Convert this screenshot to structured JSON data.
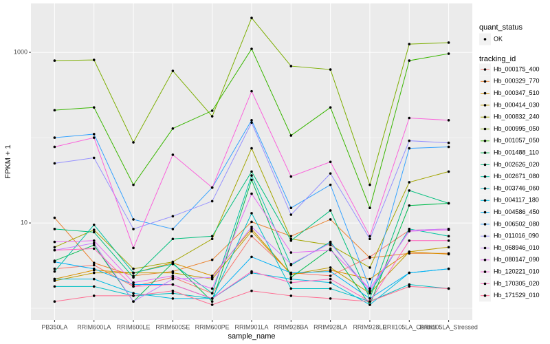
{
  "chart_data": {
    "type": "line",
    "xlabel": "sample_name",
    "ylabel": "FPKM + 1",
    "log_scale": true,
    "grid": true,
    "categories": [
      "PB350LA",
      "RRIM600LA",
      "RRIM600LE",
      "RRIM600SE",
      "RRIM600PE",
      "RRIM901LA",
      "RRIM928BA",
      "RRIM928LA",
      "RRIM928LE",
      "RRII105LA_Control",
      "RRII105LA_Stressed"
    ],
    "ylim": [
      0.73,
      3744
    ],
    "yticks": [
      10,
      1000
    ],
    "point_color": "#000000",
    "status_legend": {
      "title": "quant_status",
      "labels": [
        "OK"
      ]
    },
    "legend_title": "tracking_id",
    "legend_position": "right",
    "series": [
      {
        "name": "Hb_000175_400",
        "color": "#F8766D",
        "values": [
          2.9,
          3.2,
          1.8,
          2.3,
          1.5,
          7.0,
          2.6,
          2.4,
          4.0,
          8.2,
          8.5
        ]
      },
      {
        "name": "Hb_000329_770",
        "color": "#EA8331",
        "values": [
          11.5,
          3.4,
          2.4,
          2.7,
          3.7,
          10.3,
          7.0,
          11,
          3.9,
          4.4,
          4.4
        ]
      },
      {
        "name": "Hb_000347_510",
        "color": "#D89000",
        "values": [
          2.2,
          2.8,
          2.6,
          3.4,
          2.4,
          8.5,
          2.5,
          2.8,
          2.2,
          4.6,
          4.3
        ]
      },
      {
        "name": "Hb_000414_030",
        "color": "#C09B00",
        "values": [
          2.1,
          2.6,
          2.6,
          2.6,
          2.2,
          8.0,
          2.5,
          3.0,
          1.5,
          4.6,
          5.2
        ]
      },
      {
        "name": "Hb_000832_240",
        "color": "#A3A500",
        "values": [
          5.2,
          8.3,
          2.9,
          3.5,
          6.5,
          75,
          6.5,
          5.5,
          3.0,
          30,
          40
        ]
      },
      {
        "name": "Hb_000995_050",
        "color": "#7CAE00",
        "values": [
          800,
          815,
          88,
          606,
          178,
          2530,
          690,
          629,
          28,
          1250,
          1300
        ]
      },
      {
        "name": "Hb_001057_050",
        "color": "#39B600",
        "values": [
          210,
          226,
          28,
          128,
          207,
          1098,
          106,
          226,
          15,
          800,
          964
        ]
      },
      {
        "name": "Hb_001488_110",
        "color": "#00BB4E",
        "values": [
          3.6,
          5.5,
          1.2,
          3.4,
          1.2,
          32,
          2.3,
          5.0,
          1.1,
          16,
          17
        ]
      },
      {
        "name": "Hb_002626_020",
        "color": "#00BF7D",
        "values": [
          8.5,
          7.8,
          2.3,
          6.5,
          7.0,
          40,
          6.2,
          14,
          1.3,
          24,
          17
        ]
      },
      {
        "name": "Hb_002671_080",
        "color": "#00C1A3",
        "values": [
          2.7,
          9.5,
          2.6,
          3.3,
          1.5,
          36,
          3.2,
          6.0,
          1.5,
          8.5,
          7.0
        ]
      },
      {
        "name": "Hb_003746_060",
        "color": "#00BFC4",
        "values": [
          1.8,
          1.8,
          1.4,
          1.5,
          1.3,
          13,
          1.7,
          1.7,
          1.2,
          1.9,
          1.7
        ]
      },
      {
        "name": "Hb_004117_180",
        "color": "#00BAE0",
        "values": [
          2.2,
          2.2,
          1.5,
          1.3,
          1.3,
          2.6,
          2.2,
          2.0,
          1.1,
          2.6,
          2.9
        ]
      },
      {
        "name": "Hb_004586_450",
        "color": "#00B0F6",
        "values": [
          3.5,
          2.9,
          1.9,
          1.9,
          1.3,
          4.0,
          2.6,
          2.7,
          1.3,
          2.6,
          2.9
        ]
      },
      {
        "name": "Hb_006502_080",
        "color": "#35A2FF",
        "values": [
          100,
          110,
          11,
          8.5,
          26,
          160,
          15,
          28,
          1.7,
          75,
          78
        ]
      },
      {
        "name": "Hb_011016_090",
        "color": "#9590FF",
        "values": [
          50,
          58,
          8.5,
          12,
          18,
          150,
          12.5,
          38,
          6.5,
          92,
          87
        ]
      },
      {
        "name": "Hb_068946_010",
        "color": "#C77CFF",
        "values": [
          4.8,
          5.8,
          1.2,
          2.2,
          2.3,
          9.0,
          3.3,
          5.8,
          1.6,
          8.2,
          8.5
        ]
      },
      {
        "name": "Hb_080147_090",
        "color": "#E76BF3",
        "values": [
          6.0,
          6.2,
          2.0,
          2.4,
          1.7,
          22,
          4.5,
          4.8,
          1.7,
          8.0,
          8.3
        ]
      },
      {
        "name": "Hb_120221_010",
        "color": "#FA62DB",
        "values": [
          78,
          100,
          5.1,
          63,
          26,
          350,
          35,
          52,
          7.0,
          170,
          160
        ]
      },
      {
        "name": "Hb_170305_020",
        "color": "#FF62BC",
        "values": [
          4.8,
          5.0,
          1.8,
          1.9,
          1.3,
          2.7,
          2.0,
          2.2,
          1.2,
          6.2,
          6.2
        ]
      },
      {
        "name": "Hb_171529_010",
        "color": "#FF6C91",
        "values": [
          1.2,
          1.4,
          1.4,
          1.6,
          1.1,
          1.6,
          1.4,
          1.3,
          1.2,
          1.8,
          1.7
        ]
      }
    ]
  }
}
